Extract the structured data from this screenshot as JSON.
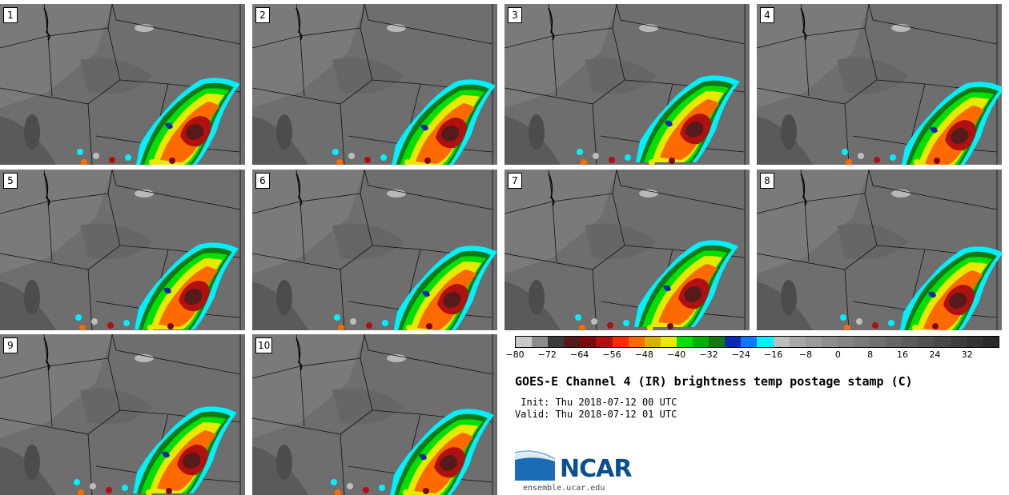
{
  "panels": [
    {
      "label": "1",
      "shift": 0
    },
    {
      "label": "2",
      "shift": 4
    },
    {
      "label": "3",
      "shift": -6
    },
    {
      "label": "4",
      "shift": 10
    },
    {
      "label": "5",
      "shift": -2
    },
    {
      "label": "6",
      "shift": 6
    },
    {
      "label": "7",
      "shift": -8
    },
    {
      "label": "8",
      "shift": 8
    },
    {
      "label": "9",
      "shift": -4
    },
    {
      "label": "10",
      "shift": 2
    }
  ],
  "colorbar": {
    "colors": [
      "#c9c9c9",
      "#8c8c8c",
      "#3a3a3a",
      "#551b1b",
      "#7a0a0a",
      "#b01010",
      "#ff2a00",
      "#ff6a00",
      "#d8b000",
      "#e8e800",
      "#00e000",
      "#00b000",
      "#107a10",
      "#0a28b0",
      "#0a78ff",
      "#00f0ff",
      "#bdbdbd",
      "#a8a8a8",
      "#9a9a9a",
      "#8e8e8e",
      "#848484",
      "#7a7a7a",
      "#707070",
      "#666666",
      "#5c5c5c",
      "#525252",
      "#484848",
      "#3e3e3e",
      "#343434",
      "#2a2a2a"
    ],
    "tick_labels": [
      "−80",
      "−72",
      "−64",
      "−56",
      "−48",
      "−40",
      "−32",
      "−24",
      "−16",
      "−8",
      "0",
      "8",
      "16",
      "24",
      "32"
    ]
  },
  "title": "GOES-E Channel 4 (IR) brightness temp postage stamp (C)",
  "init_text": " Init: Thu 2018-07-12 00 UTC",
  "valid_text": "Valid: Thu 2018-07-12 01 UTC",
  "logo": {
    "name": "NCAR",
    "url": "ensemble.ucar.edu"
  }
}
